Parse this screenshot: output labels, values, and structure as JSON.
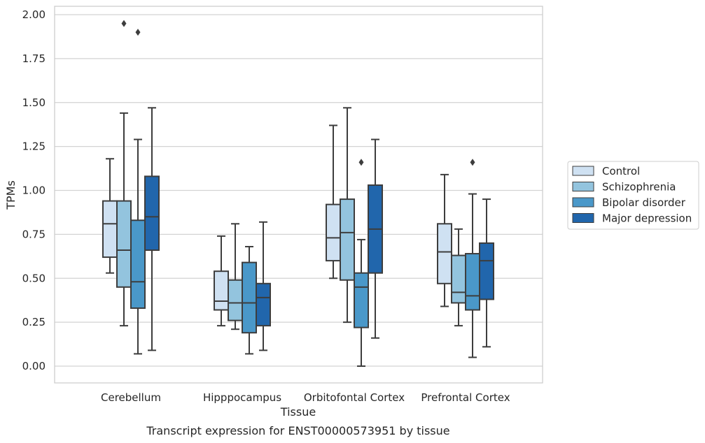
{
  "chart_data": {
    "type": "box",
    "title": "",
    "caption": "Transcript expression for ENST00000573951 by tissue",
    "xlabel": "Tissue",
    "ylabel": "TPMs",
    "ylim": [
      -0.09,
      2.05
    ],
    "yticks": [
      "0.00",
      "0.25",
      "0.50",
      "0.75",
      "1.00",
      "1.25",
      "1.50",
      "1.75",
      "2.00"
    ],
    "ytick_values": [
      0,
      0.25,
      0.5,
      0.75,
      1.0,
      1.25,
      1.5,
      1.75,
      2.0
    ],
    "grid": true,
    "legend_position": "right",
    "categories": [
      "Cerebellum",
      "Hipppocampus",
      "Orbitofontal Cortex",
      "Prefrontal Cortex"
    ],
    "series": [
      {
        "name": "Control",
        "color": "#cfe1f2",
        "boxes": [
          {
            "whisker_low": 0.53,
            "q1": 0.62,
            "median": 0.81,
            "q3": 0.94,
            "whisker_high": 1.18,
            "outliers": []
          },
          {
            "whisker_low": 0.23,
            "q1": 0.32,
            "median": 0.37,
            "q3": 0.54,
            "whisker_high": 0.74,
            "outliers": []
          },
          {
            "whisker_low": 0.5,
            "q1": 0.6,
            "median": 0.73,
            "q3": 0.92,
            "whisker_high": 1.37,
            "outliers": []
          },
          {
            "whisker_low": 0.34,
            "q1": 0.47,
            "median": 0.65,
            "q3": 0.81,
            "whisker_high": 1.09,
            "outliers": []
          }
        ]
      },
      {
        "name": "Schizophrenia",
        "color": "#93c4de",
        "boxes": [
          {
            "whisker_low": 0.23,
            "q1": 0.45,
            "median": 0.66,
            "q3": 0.94,
            "whisker_high": 1.44,
            "outliers": [
              1.95
            ]
          },
          {
            "whisker_low": 0.21,
            "q1": 0.26,
            "median": 0.36,
            "q3": 0.49,
            "whisker_high": 0.81,
            "outliers": []
          },
          {
            "whisker_low": 0.25,
            "q1": 0.49,
            "median": 0.76,
            "q3": 0.95,
            "whisker_high": 1.47,
            "outliers": []
          },
          {
            "whisker_low": 0.23,
            "q1": 0.36,
            "median": 0.42,
            "q3": 0.63,
            "whisker_high": 0.78,
            "outliers": []
          }
        ]
      },
      {
        "name": "Bipolar disorder",
        "color": "#4a98c9",
        "boxes": [
          {
            "whisker_low": 0.07,
            "q1": 0.33,
            "median": 0.48,
            "q3": 0.83,
            "whisker_high": 1.29,
            "outliers": [
              1.9
            ]
          },
          {
            "whisker_low": 0.07,
            "q1": 0.19,
            "median": 0.36,
            "q3": 0.59,
            "whisker_high": 0.68,
            "outliers": []
          },
          {
            "whisker_low": 0.0,
            "q1": 0.22,
            "median": 0.45,
            "q3": 0.53,
            "whisker_high": 0.72,
            "outliers": [
              1.16
            ]
          },
          {
            "whisker_low": 0.05,
            "q1": 0.32,
            "median": 0.4,
            "q3": 0.64,
            "whisker_high": 0.98,
            "outliers": [
              1.16
            ]
          }
        ]
      },
      {
        "name": "Major depression",
        "color": "#2166ac",
        "boxes": [
          {
            "whisker_low": 0.09,
            "q1": 0.66,
            "median": 0.85,
            "q3": 1.08,
            "whisker_high": 1.47,
            "outliers": []
          },
          {
            "whisker_low": 0.09,
            "q1": 0.23,
            "median": 0.39,
            "q3": 0.47,
            "whisker_high": 0.82,
            "outliers": []
          },
          {
            "whisker_low": 0.16,
            "q1": 0.53,
            "median": 0.78,
            "q3": 1.03,
            "whisker_high": 1.29,
            "outliers": []
          },
          {
            "whisker_low": 0.11,
            "q1": 0.38,
            "median": 0.6,
            "q3": 0.7,
            "whisker_high": 0.95,
            "outliers": []
          }
        ]
      }
    ]
  }
}
